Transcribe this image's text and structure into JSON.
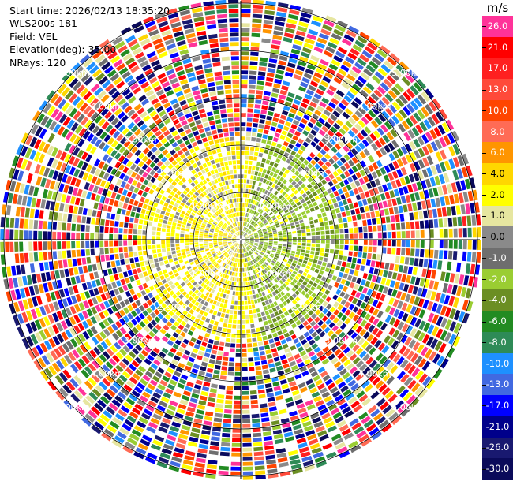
{
  "info": {
    "start_time": "Start time: 2026/02/13 18:35:20",
    "station": "WLS200s-181",
    "field": "Field: VEL",
    "elevation": "Elevation(deg): 35.00",
    "nrays": "NRays: 120"
  },
  "colorbar": {
    "unit": "m/s",
    "bands": [
      {
        "label": "26.0",
        "color": "#ff3399"
      },
      {
        "label": "21.0",
        "color": "#ff0000"
      },
      {
        "label": "17.0",
        "color": "#ff2020"
      },
      {
        "label": "13.0",
        "color": "#ff4a3a"
      },
      {
        "label": "10.0",
        "color": "#ff4500"
      },
      {
        "label": "8.0",
        "color": "#ff6b55"
      },
      {
        "label": "6.0",
        "color": "#ff9500"
      },
      {
        "label": "4.0",
        "color": "#ffd700"
      },
      {
        "label": "2.0",
        "color": "#ffff00"
      },
      {
        "label": "1.0",
        "color": "#e6e6a0"
      },
      {
        "label": "0.0",
        "color": "#8a8a8a"
      },
      {
        "label": "-1.0",
        "color": "#6e6e6e"
      },
      {
        "label": "-2.0",
        "color": "#9acd32"
      },
      {
        "label": "-4.0",
        "color": "#6b8e23"
      },
      {
        "label": "-6.0",
        "color": "#228b22"
      },
      {
        "label": "-8.0",
        "color": "#2e8b57"
      },
      {
        "label": "-10.0",
        "color": "#1e90ff"
      },
      {
        "label": "-13.0",
        "color": "#4169e1"
      },
      {
        "label": "-17.0",
        "color": "#0000ff"
      },
      {
        "label": "-21.0",
        "color": "#00008b"
      },
      {
        "label": "-26.0",
        "color": "#191970"
      },
      {
        "label": "-30.0",
        "color": "#0a0a5a"
      }
    ]
  },
  "range_labels": [
    "1.00km",
    "1.00km",
    "1.00km",
    "1.00km",
    "2.00km",
    "2.00km",
    "2.00km",
    "2.00km",
    "3.00km",
    "3.00km",
    "3.00km",
    "3.00km",
    "4.00km",
    "4.00km",
    "4.00km",
    "4.00km",
    "5.00km",
    "5.00km",
    "5.00km",
    "5.00km"
  ]
}
